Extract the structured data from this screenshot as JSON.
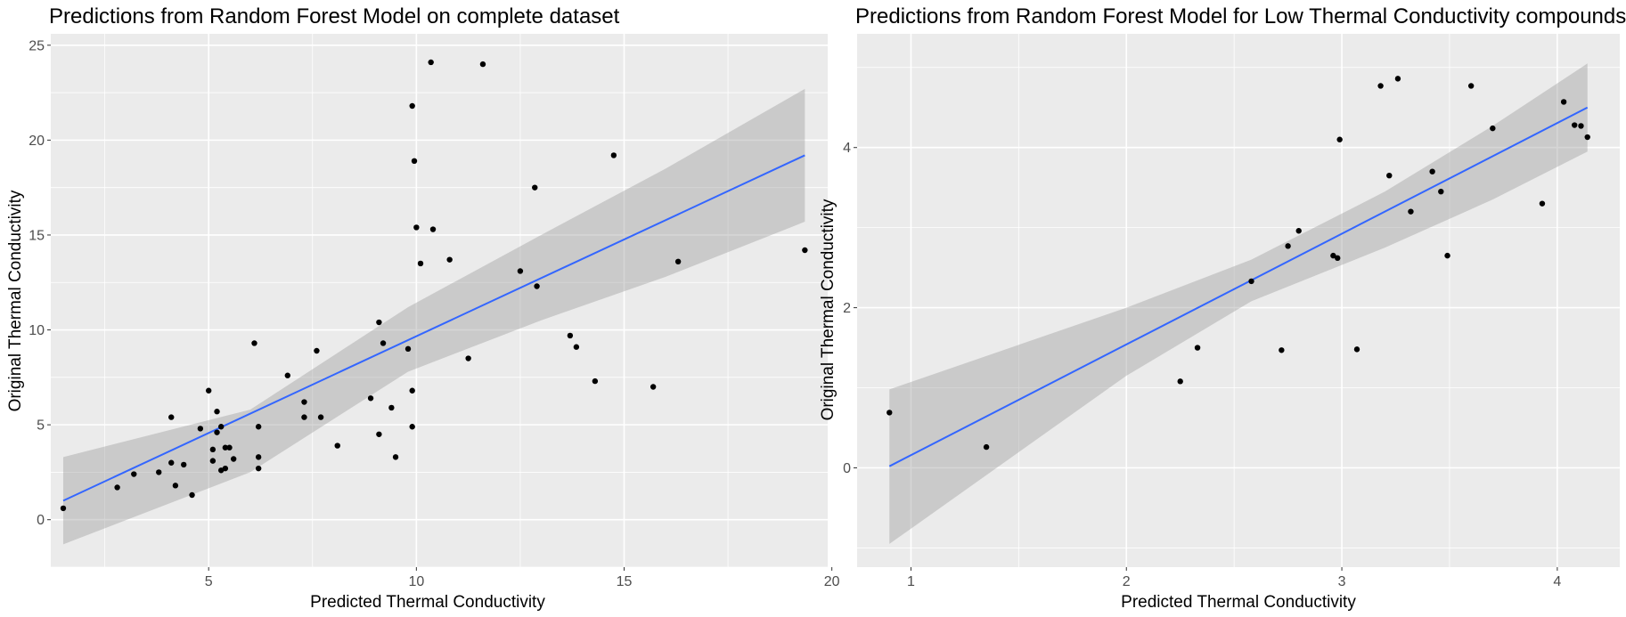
{
  "chart_data": [
    {
      "type": "scatter",
      "title": "Predictions from Random Forest Model on complete dataset",
      "xlabel": "Predicted Thermal Conductivity",
      "ylabel": "Original Thermal Conductivity",
      "xlim": [
        1.2,
        19.9
      ],
      "ylim": [
        -2.5,
        25.6
      ],
      "xticks": [
        5,
        10,
        15,
        20
      ],
      "xtick_labels": [
        "5",
        "10",
        "15",
        "20"
      ],
      "yticks": [
        0,
        5,
        10,
        15,
        20,
        25
      ],
      "ytick_labels": [
        "0",
        "5",
        "10",
        "15",
        "20",
        "25"
      ],
      "grid": true,
      "points": [
        [
          1.5,
          0.6
        ],
        [
          2.8,
          1.7
        ],
        [
          3.2,
          2.4
        ],
        [
          3.8,
          2.5
        ],
        [
          4.1,
          5.4
        ],
        [
          4.1,
          3.0
        ],
        [
          4.2,
          1.8
        ],
        [
          4.4,
          2.9
        ],
        [
          4.6,
          1.3
        ],
        [
          4.8,
          4.8
        ],
        [
          5.0,
          6.8
        ],
        [
          5.1,
          3.7
        ],
        [
          5.1,
          3.1
        ],
        [
          5.2,
          5.7
        ],
        [
          5.2,
          4.6
        ],
        [
          5.3,
          2.6
        ],
        [
          5.3,
          4.9
        ],
        [
          5.4,
          2.7
        ],
        [
          5.4,
          3.8
        ],
        [
          5.5,
          3.8
        ],
        [
          5.6,
          3.2
        ],
        [
          6.1,
          9.3
        ],
        [
          6.2,
          4.9
        ],
        [
          6.2,
          3.3
        ],
        [
          6.2,
          2.7
        ],
        [
          6.9,
          7.6
        ],
        [
          7.3,
          6.2
        ],
        [
          7.3,
          5.4
        ],
        [
          7.6,
          8.9
        ],
        [
          7.7,
          5.4
        ],
        [
          8.1,
          3.9
        ],
        [
          8.9,
          6.4
        ],
        [
          9.1,
          10.4
        ],
        [
          9.1,
          4.5
        ],
        [
          9.2,
          9.3
        ],
        [
          9.4,
          5.9
        ],
        [
          9.5,
          3.3
        ],
        [
          9.8,
          9.0
        ],
        [
          9.9,
          6.8
        ],
        [
          9.9,
          4.9
        ],
        [
          9.9,
          21.8
        ],
        [
          9.95,
          18.9
        ],
        [
          10.0,
          15.4
        ],
        [
          10.1,
          13.5
        ],
        [
          10.35,
          24.1
        ],
        [
          10.4,
          15.3
        ],
        [
          10.8,
          13.7
        ],
        [
          11.25,
          8.5
        ],
        [
          11.6,
          24.0
        ],
        [
          12.5,
          13.1
        ],
        [
          12.85,
          17.5
        ],
        [
          12.9,
          12.3
        ],
        [
          13.7,
          9.7
        ],
        [
          13.85,
          9.1
        ],
        [
          14.3,
          7.3
        ],
        [
          14.75,
          19.2
        ],
        [
          15.7,
          7.0
        ],
        [
          16.3,
          13.6
        ],
        [
          19.35,
          14.2
        ]
      ],
      "fit": {
        "x_start": 1.5,
        "y_start": 1.0,
        "x_end": 19.35,
        "y_end": 19.2
      },
      "band": [
        [
          1.5,
          -1.3,
          3.3
        ],
        [
          6.0,
          2.5,
          5.8
        ],
        [
          9.8,
          7.8,
          11.2
        ],
        [
          13.0,
          10.5,
          15.0
        ],
        [
          16.0,
          12.8,
          18.5
        ],
        [
          19.35,
          15.7,
          22.7
        ]
      ]
    },
    {
      "type": "scatter",
      "title": "Predictions from Random Forest Model for Low Thermal Conductivity compounds",
      "xlabel": "Predicted Thermal Conductivity",
      "ylabel": "Original Thermal Conductivity",
      "xlim": [
        0.75,
        4.29
      ],
      "ylim": [
        -1.24,
        5.42
      ],
      "xticks": [
        1,
        2,
        3,
        4
      ],
      "xtick_labels": [
        "1",
        "2",
        "3",
        "4"
      ],
      "yticks": [
        0,
        2,
        4
      ],
      "ytick_labels": [
        "0",
        "2",
        "4"
      ],
      "grid": true,
      "points": [
        [
          0.9,
          0.69
        ],
        [
          1.35,
          0.26
        ],
        [
          2.25,
          1.08
        ],
        [
          2.33,
          1.5
        ],
        [
          2.58,
          2.33
        ],
        [
          2.72,
          1.47
        ],
        [
          2.75,
          2.77
        ],
        [
          2.8,
          2.96
        ],
        [
          2.96,
          2.65
        ],
        [
          2.98,
          2.62
        ],
        [
          2.99,
          4.1
        ],
        [
          3.07,
          1.48
        ],
        [
          3.18,
          4.77
        ],
        [
          3.22,
          3.65
        ],
        [
          3.26,
          4.86
        ],
        [
          3.32,
          3.2
        ],
        [
          3.42,
          3.7
        ],
        [
          3.46,
          3.45
        ],
        [
          3.49,
          2.65
        ],
        [
          3.6,
          4.77
        ],
        [
          3.7,
          4.24
        ],
        [
          3.93,
          3.3
        ],
        [
          4.03,
          4.57
        ],
        [
          4.08,
          4.28
        ],
        [
          4.11,
          4.27
        ],
        [
          4.14,
          4.13
        ]
      ],
      "fit": {
        "x_start": 0.9,
        "y_start": 0.02,
        "x_end": 4.14,
        "y_end": 4.5
      },
      "band": [
        [
          0.9,
          -0.95,
          0.98
        ],
        [
          2.0,
          1.15,
          2.0
        ],
        [
          2.58,
          2.08,
          2.6
        ],
        [
          3.2,
          2.75,
          3.45
        ],
        [
          3.7,
          3.35,
          4.27
        ],
        [
          4.14,
          3.95,
          5.05
        ]
      ]
    }
  ]
}
